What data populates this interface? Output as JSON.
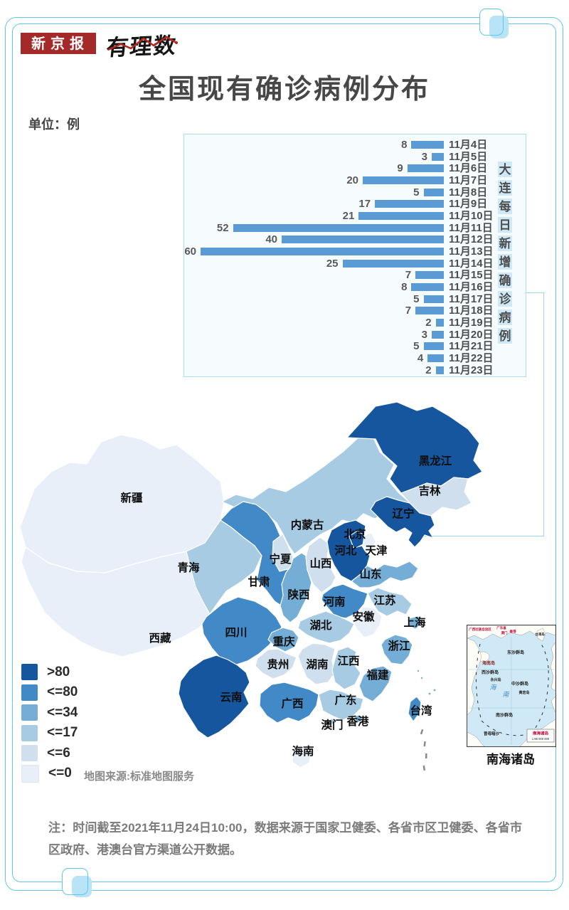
{
  "page": {
    "brand": "新京报",
    "brand2": "有理数",
    "title": "全国现有确诊病例分布",
    "unit_label": "单位：例",
    "map_source": "地图来源:标准地图服务",
    "note": "注：时间截至2021年11月24日10:00，数据来源于国家卫健委、各省市区卫健委、各省市区政府、港澳台官方渠道公开数据。"
  },
  "chart_data": {
    "type": "bar",
    "orientation": "horizontal",
    "title": "大连每日新增确诊病例",
    "unit": "例",
    "categories": [
      "11月4日",
      "11月5日",
      "11月6日",
      "11月7日",
      "11月8日",
      "11月9日",
      "11月10日",
      "11月11日",
      "11月12日",
      "11月13日",
      "11月14日",
      "11月15日",
      "11月16日",
      "11月17日",
      "11月18日",
      "11月19日",
      "11月20日",
      "11月21日",
      "11月22日",
      "11月23日"
    ],
    "values": [
      8,
      3,
      9,
      20,
      5,
      17,
      21,
      52,
      40,
      60,
      25,
      7,
      8,
      5,
      7,
      2,
      3,
      5,
      4,
      2
    ],
    "bar_color": "#5b9bd5",
    "xlim": [
      0,
      62
    ],
    "grid": false,
    "value_labels": true
  },
  "legend": [
    {
      "label": ">80",
      "color": "#15569f"
    },
    {
      "label": "<=80",
      "color": "#4189c7"
    },
    {
      "label": "<=34",
      "color": "#74aed6"
    },
    {
      "label": "<=17",
      "color": "#a8cbe4"
    },
    {
      "label": "<=6",
      "color": "#cfdfee"
    },
    {
      "label": "<=0",
      "color": "#e9eff9"
    }
  ],
  "map": {
    "provinces": [
      {
        "id": "xj",
        "name": "新疆",
        "level": "<=0"
      },
      {
        "id": "xz",
        "name": "西藏",
        "level": "<=0"
      },
      {
        "id": "nm",
        "name": "内蒙古",
        "level": "<=17"
      },
      {
        "id": "qh",
        "name": "青海",
        "level": "<=17"
      },
      {
        "id": "gs",
        "name": "甘肃",
        "level": "<=80"
      },
      {
        "id": "sc",
        "name": "四川",
        "level": "<=80"
      },
      {
        "id": "yn",
        "name": "云南",
        "level": ">80"
      },
      {
        "id": "hlj",
        "name": "黑龙江",
        "level": ">80"
      },
      {
        "id": "jl",
        "name": "吉林",
        "level": "<=6"
      },
      {
        "id": "ln",
        "name": "辽宁",
        "level": ">80"
      },
      {
        "id": "nx",
        "name": "宁夏",
        "level": "<=6"
      },
      {
        "id": "sn",
        "name": "陕西",
        "level": "<=34"
      },
      {
        "id": "sx",
        "name": "山西",
        "level": "<=6"
      },
      {
        "id": "heb",
        "name": "河北",
        "level": ">80"
      },
      {
        "id": "bj",
        "name": "北京",
        "level": ">80"
      },
      {
        "id": "tj",
        "name": "天津",
        "level": "<=0"
      },
      {
        "id": "sd",
        "name": "山东",
        "level": "<=34"
      },
      {
        "id": "hen",
        "name": "河南",
        "level": "<=80"
      },
      {
        "id": "js",
        "name": "江苏",
        "level": "<=17"
      },
      {
        "id": "ah",
        "name": "安徽",
        "level": "<=0"
      },
      {
        "id": "sh",
        "name": "上海",
        "level": "<=34"
      },
      {
        "id": "hub",
        "name": "湖北",
        "level": "<=17"
      },
      {
        "id": "cq",
        "name": "重庆",
        "level": "<=34"
      },
      {
        "id": "gz",
        "name": "贵州",
        "level": "<=6"
      },
      {
        "id": "hun",
        "name": "湖南",
        "level": "<=6"
      },
      {
        "id": "jx",
        "name": "江西",
        "level": "<=17"
      },
      {
        "id": "zj",
        "name": "浙江",
        "level": "<=34"
      },
      {
        "id": "fj",
        "name": "福建",
        "level": "<=34"
      },
      {
        "id": "gx",
        "name": "广西",
        "level": "<=80"
      },
      {
        "id": "gd",
        "name": "广东",
        "level": "<=17"
      },
      {
        "id": "hk",
        "name": "香港",
        "level": "<=34"
      },
      {
        "id": "mo",
        "name": "澳门",
        "level": "<=17"
      },
      {
        "id": "hain",
        "name": "海南",
        "level": "<=0"
      },
      {
        "id": "tw",
        "name": "台湾",
        "level": "<=80"
      }
    ]
  },
  "inset": {
    "caption": "南海诸岛",
    "sea_labels": [
      "东沙群岛",
      "海南岛",
      "西沙群岛",
      "永兴岛",
      "中沙群岛",
      "黄岩岛",
      "南沙群岛",
      "曾母暗沙"
    ],
    "sea_name": [
      "海",
      "南"
    ],
    "coast_labels": [
      "广西壮族自治区",
      "广东省",
      "澳门",
      "香港",
      "台湾岛"
    ],
    "scale_title": "南海诸岛",
    "scale_value": "1:96 000 000"
  }
}
